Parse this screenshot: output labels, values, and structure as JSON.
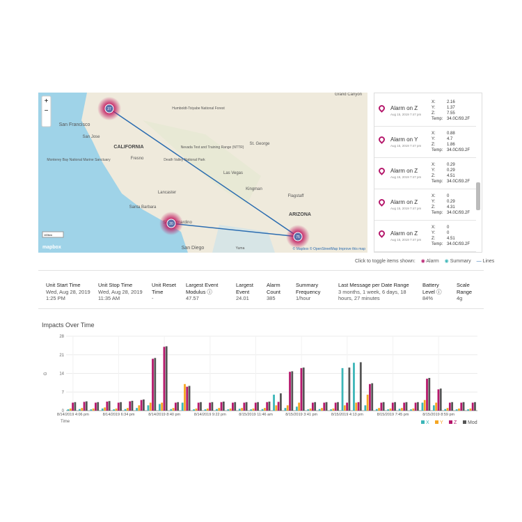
{
  "map": {
    "labels": [
      "San Francisco",
      "San Jose",
      "CALIFORNIA",
      "Fresno",
      "Humboldt-Toiyabe National Forest",
      "Nevada Test and Training Range (NTTR)",
      "Death Valley National Park",
      "Las Vegas",
      "St. George",
      "Kingman",
      "Flagstaff",
      "Lancaster",
      "Santa Barbara",
      "San Bernardino",
      "San Diego",
      "ARIZONA",
      "Yuma",
      "Monterey Bay National Marine Sanctuary",
      "Grand Canyon"
    ],
    "clusters": [
      37,
      20,
      75
    ],
    "attribution": "© Mapbox © OpenStreetMap Improve this map",
    "logo": "mapbox",
    "scale": "100km"
  },
  "alarms": {
    "field_labels": [
      "X:",
      "Y:",
      "Z:",
      "Temp:"
    ],
    "items": [
      {
        "title": "Alarm on Z",
        "date": "Aug 15, 2019 7:47 pm",
        "x": "2.16",
        "y": "1.37",
        "z": "7.55",
        "temp": "34.0C/93.2F"
      },
      {
        "title": "Alarm on Y",
        "date": "Aug 15, 2019 7:47 pm",
        "x": "0.88",
        "y": "4.7",
        "z": "1.86",
        "temp": "34.0C/93.2F"
      },
      {
        "title": "Alarm on Z",
        "date": "Aug 15, 2019 7:47 pm",
        "x": "0.29",
        "y": "0.29",
        "z": "4.51",
        "temp": "34.0C/93.2F"
      },
      {
        "title": "Alarm on Z",
        "date": "Aug 15, 2019 7:47 pm",
        "x": "0",
        "y": "0.29",
        "z": "4.31",
        "temp": "34.0C/93.2F"
      },
      {
        "title": "Alarm on Z",
        "date": "Aug 15, 2019 7:47 pm",
        "x": "0",
        "y": "0",
        "z": "4.51",
        "temp": "34.0C/93.2F"
      }
    ]
  },
  "toggle": {
    "prompt": "Click to toggle items shown:",
    "alarm": "Alarm",
    "summary": "Summary",
    "lines": "Lines"
  },
  "stats": [
    {
      "label": "Unit Start Time",
      "value": "Wed, Aug 28, 2019 1:25 PM"
    },
    {
      "label": "Unit Stop Time",
      "value": "Wed, Aug 28, 2019 11:35 AM"
    },
    {
      "label": "Unit Reset Time",
      "value": "-"
    },
    {
      "label": "Largest Event Modulus ⓘ",
      "value": "47.57"
    },
    {
      "label": "Largest Event",
      "value": "24.01"
    },
    {
      "label": "Alarm Count",
      "value": "385"
    },
    {
      "label": "Summary Frequency",
      "value": "1/hour"
    },
    {
      "label": "Last Message per Date Range",
      "value": "3 months, 1 week, 6 days, 18 hours, 27 minutes"
    },
    {
      "label": "Battery Level ⓘ",
      "value": "84%"
    },
    {
      "label": "Scale Range",
      "value": "4g"
    }
  ],
  "chart_data": {
    "type": "bar",
    "title": "Impacts Over Time",
    "y_label": "G",
    "x_label": "Time",
    "categories": [
      "8/14/2019 4:06 pm",
      null,
      null,
      null,
      "8/14/2019 6:34 pm",
      null,
      null,
      null,
      "8/14/2019 8:40 pm",
      null,
      null,
      null,
      "8/14/2019 9:22 pm",
      null,
      null,
      null,
      "8/15/2019 11:46 am",
      null,
      null,
      null,
      "8/15/2019 3:41 pm",
      null,
      null,
      null,
      "8/15/2019 4:13 pm",
      null,
      null,
      null,
      "8/15/2019 7:45 pm",
      null,
      null,
      null,
      "8/15/2019 8:59 pm",
      null,
      null,
      null
    ],
    "series": [
      {
        "name": "X",
        "color": "#3bb6b8",
        "values": [
          0.5,
          0.6,
          0.5,
          0.8,
          0.5,
          0.6,
          1,
          2,
          2.5,
          0.6,
          3,
          0.5,
          0.5,
          0.6,
          0.5,
          0.7,
          0.5,
          0.6,
          6,
          1,
          1.5,
          0.5,
          0.6,
          0.5,
          16,
          18,
          2,
          0.6,
          0.5,
          0.7,
          0.5,
          3,
          2,
          0.6,
          0.5,
          0.5
        ]
      },
      {
        "name": "Y",
        "color": "#f5a623",
        "values": [
          0.8,
          1,
          0.8,
          1.2,
          0.8,
          1,
          2,
          3,
          3,
          1,
          10,
          0.8,
          0.8,
          1,
          0.8,
          1,
          0.8,
          1,
          2,
          2,
          3,
          0.8,
          1,
          0.8,
          2,
          3,
          6,
          1,
          0.8,
          1,
          0.8,
          4,
          3,
          1,
          0.8,
          0.8
        ]
      },
      {
        "name": "Z",
        "color": "#b5176b",
        "values": [
          3,
          3.3,
          3,
          3.4,
          3,
          3.5,
          4,
          19.5,
          24,
          3,
          9,
          3,
          3,
          3.2,
          3,
          3,
          3,
          3.2,
          3.3,
          14.6,
          16,
          3,
          3,
          3,
          3,
          3.2,
          10,
          3,
          3,
          3,
          3,
          12,
          8,
          3,
          3,
          3
        ]
      },
      {
        "name": "Mod",
        "color": "#555555",
        "values": [
          3.2,
          3.5,
          3.2,
          3.6,
          3.2,
          3.7,
          4.2,
          19.8,
          24.2,
          3.2,
          9.3,
          3.2,
          3.2,
          3.4,
          3.2,
          3.2,
          3.2,
          3.4,
          6.5,
          14.8,
          16.2,
          3.2,
          3.2,
          3.2,
          16.2,
          18.2,
          10.3,
          3.2,
          3.2,
          3.2,
          3.2,
          12.3,
          8.3,
          3.2,
          3.2,
          3.2
        ]
      }
    ],
    "ylim": [
      0,
      28
    ],
    "yticks": [
      0,
      7,
      14,
      21,
      28
    ],
    "grid": true
  }
}
